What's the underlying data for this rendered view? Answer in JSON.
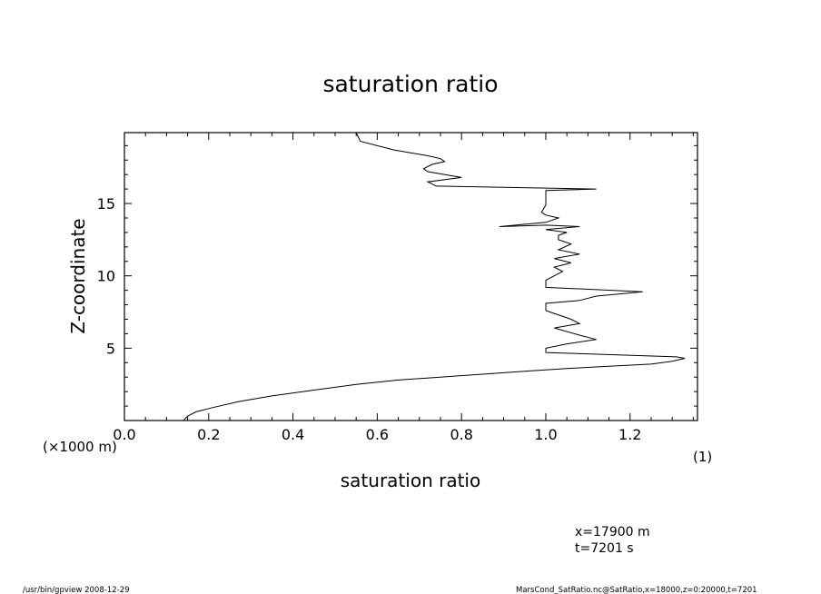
{
  "chart_data": {
    "type": "line",
    "title": "saturation ratio",
    "xlabel": "saturation ratio",
    "ylabel": "Z-coordinate",
    "xunit": "(1)",
    "yunit": "(×1000 m)",
    "xlim": [
      0.0,
      1.36
    ],
    "ylim": [
      0,
      19.9
    ],
    "xticks": [
      "0.0",
      "0.2",
      "0.4",
      "0.6",
      "0.8",
      "1.0",
      "1.2"
    ],
    "yticks": [
      "5",
      "10",
      "15"
    ],
    "grid": false,
    "series": [
      {
        "x": [
          0.14,
          0.15,
          0.17,
          0.21,
          0.27,
          0.35,
          0.45,
          0.55,
          0.65,
          0.75,
          0.85,
          0.95,
          1.05,
          1.15,
          1.25,
          1.3,
          1.33,
          1.31,
          1.0,
          1.0,
          1.05,
          1.12,
          1.08,
          1.02,
          1.08,
          1.06,
          1.02,
          1.0,
          1.0,
          1.08,
          1.12,
          1.23,
          1.0,
          1.0,
          1.02,
          1.04,
          1.02,
          1.06,
          1.02,
          1.08,
          1.03,
          1.06,
          1.03,
          1.03,
          1.05,
          1.0,
          1.08,
          1.0,
          0.89,
          1.0,
          1.03,
          1.0,
          0.99,
          1.0,
          1.0,
          1.12,
          0.74,
          0.72,
          0.8,
          0.72,
          0.71,
          0.73,
          0.76,
          0.75,
          0.72,
          0.64,
          0.56,
          0.55
        ],
        "y": [
          0.0,
          0.3,
          0.6,
          0.9,
          1.3,
          1.7,
          2.1,
          2.5,
          2.8,
          3.0,
          3.2,
          3.4,
          3.6,
          3.75,
          3.9,
          4.1,
          4.3,
          4.4,
          4.7,
          5.0,
          5.3,
          5.6,
          5.9,
          6.4,
          6.7,
          7.0,
          7.4,
          7.6,
          8.1,
          8.3,
          8.6,
          8.9,
          9.2,
          9.7,
          10.0,
          10.3,
          10.6,
          10.9,
          11.2,
          11.5,
          11.8,
          12.2,
          12.5,
          12.8,
          13.0,
          13.2,
          13.4,
          13.5,
          13.4,
          13.7,
          14.0,
          14.2,
          14.4,
          14.9,
          15.9,
          16.0,
          16.2,
          16.5,
          16.8,
          17.2,
          17.4,
          17.7,
          17.9,
          18.1,
          18.3,
          18.7,
          19.3,
          19.9
        ]
      }
    ]
  },
  "annotations": {
    "position": "x=17900  m",
    "time": "t=7201  s"
  },
  "footer": {
    "left": "/usr/bin/gpview   2008-12-29",
    "right": "MarsCond_SatRatio.nc@SatRatio,x=18000,z=0:20000,t=7201"
  }
}
